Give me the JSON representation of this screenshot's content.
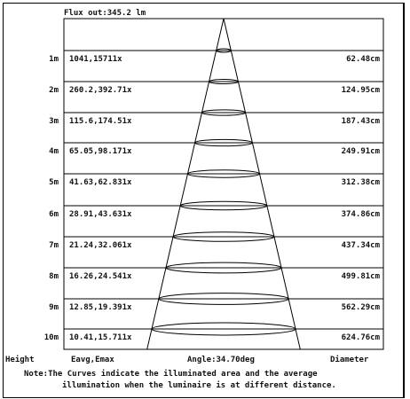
{
  "header": {
    "flux": "Flux out:345.2 lm"
  },
  "rows": [
    {
      "height": "1m",
      "illum": "1041,15711x",
      "diameter": "62.48cm"
    },
    {
      "height": "2m",
      "illum": "260.2,392.71x",
      "diameter": "124.95cm"
    },
    {
      "height": "3m",
      "illum": "115.6,174.51x",
      "diameter": "187.43cm"
    },
    {
      "height": "4m",
      "illum": "65.05,98.171x",
      "diameter": "249.91cm"
    },
    {
      "height": "5m",
      "illum": "41.63,62.831x",
      "diameter": "312.38cm"
    },
    {
      "height": "6m",
      "illum": "28.91,43.631x",
      "diameter": "374.86cm"
    },
    {
      "height": "7m",
      "illum": "21.24,32.061x",
      "diameter": "437.34cm"
    },
    {
      "height": "8m",
      "illum": "16.26,24.541x",
      "diameter": "499.81cm"
    },
    {
      "height": "9m",
      "illum": "12.85,19.391x",
      "diameter": "562.29cm"
    },
    {
      "height": "10m",
      "illum": "10.41,15.711x",
      "diameter": "624.76cm"
    }
  ],
  "footer": {
    "height_label": "Height",
    "illum_label": "Eavg,Emax",
    "angle_label": "Angle:34.70deg",
    "diameter_label": "Diameter",
    "note_line1": "Note:The Curves indicate the illuminated area and the average",
    "note_line2": "illumination when the luminaire is at different distance."
  }
}
